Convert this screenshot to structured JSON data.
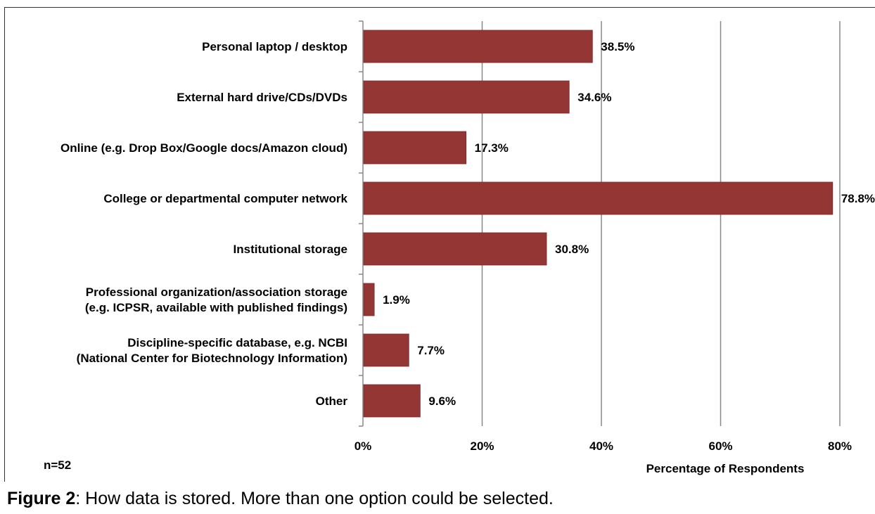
{
  "chart_data": {
    "type": "bar",
    "orientation": "horizontal",
    "categories": [
      [
        "Personal laptop / desktop"
      ],
      [
        "External hard drive/CDs/DVDs"
      ],
      [
        "Online (e.g. Drop Box/Google docs/Amazon cloud)"
      ],
      [
        "College or departmental computer network"
      ],
      [
        "Institutional storage"
      ],
      [
        "Professional organization/association storage",
        "(e.g. ICPSR, available with published findings)"
      ],
      [
        "Discipline-specific database, e.g. NCBI",
        "(National Center for Biotechnology Information)"
      ],
      [
        "Other"
      ]
    ],
    "values": [
      38.5,
      34.6,
      17.3,
      78.8,
      30.8,
      1.9,
      7.7,
      9.6
    ],
    "value_labels": [
      "38.5%",
      "34.6%",
      "17.3%",
      "78.8%",
      "30.8%",
      "1.9%",
      "7.7%",
      "9.6%"
    ],
    "xlim": [
      0,
      80
    ],
    "ticks": [
      0,
      20,
      40,
      60,
      80
    ],
    "tick_labels": [
      "0%",
      "20%",
      "40%",
      "60%",
      "80%"
    ],
    "xlabel": "Percentage of Respondents",
    "ylabel": "",
    "grid": "vertical",
    "bar_color": "#943634",
    "note": "n=52"
  },
  "caption": {
    "label": "Figure 2",
    "text": ": How data is stored. More than one option could be selected."
  }
}
